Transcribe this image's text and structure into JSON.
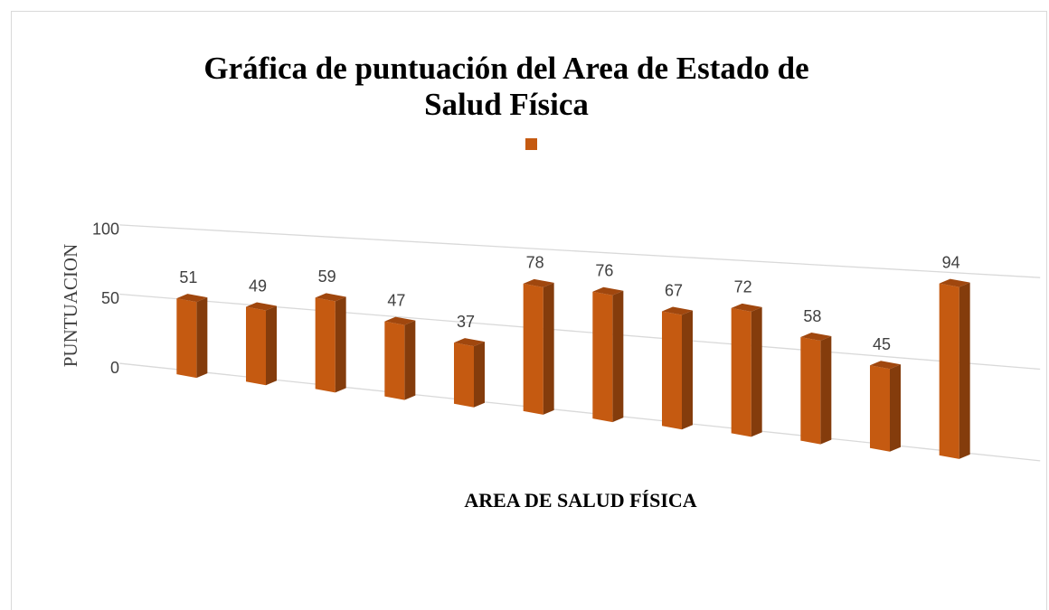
{
  "chart_data": {
    "type": "bar3d",
    "title": "Gráfica de puntuación del Area de Estado de Salud Física",
    "x_label": "AREA  DE SALUD FÍSICA",
    "y_label": "PUNTUACION",
    "categories": [
      null,
      null,
      null,
      null,
      null,
      null,
      null,
      null,
      null,
      null,
      null,
      null
    ],
    "series": [
      {
        "color": "#c55a11",
        "values": [
          51,
          49,
          59,
          47,
          37,
          78,
          76,
          67,
          72,
          58,
          45,
          94
        ]
      }
    ],
    "ylim": [
      0,
      100
    ],
    "yticks": [
      0,
      50,
      100
    ],
    "grid": true,
    "legend": "top"
  }
}
